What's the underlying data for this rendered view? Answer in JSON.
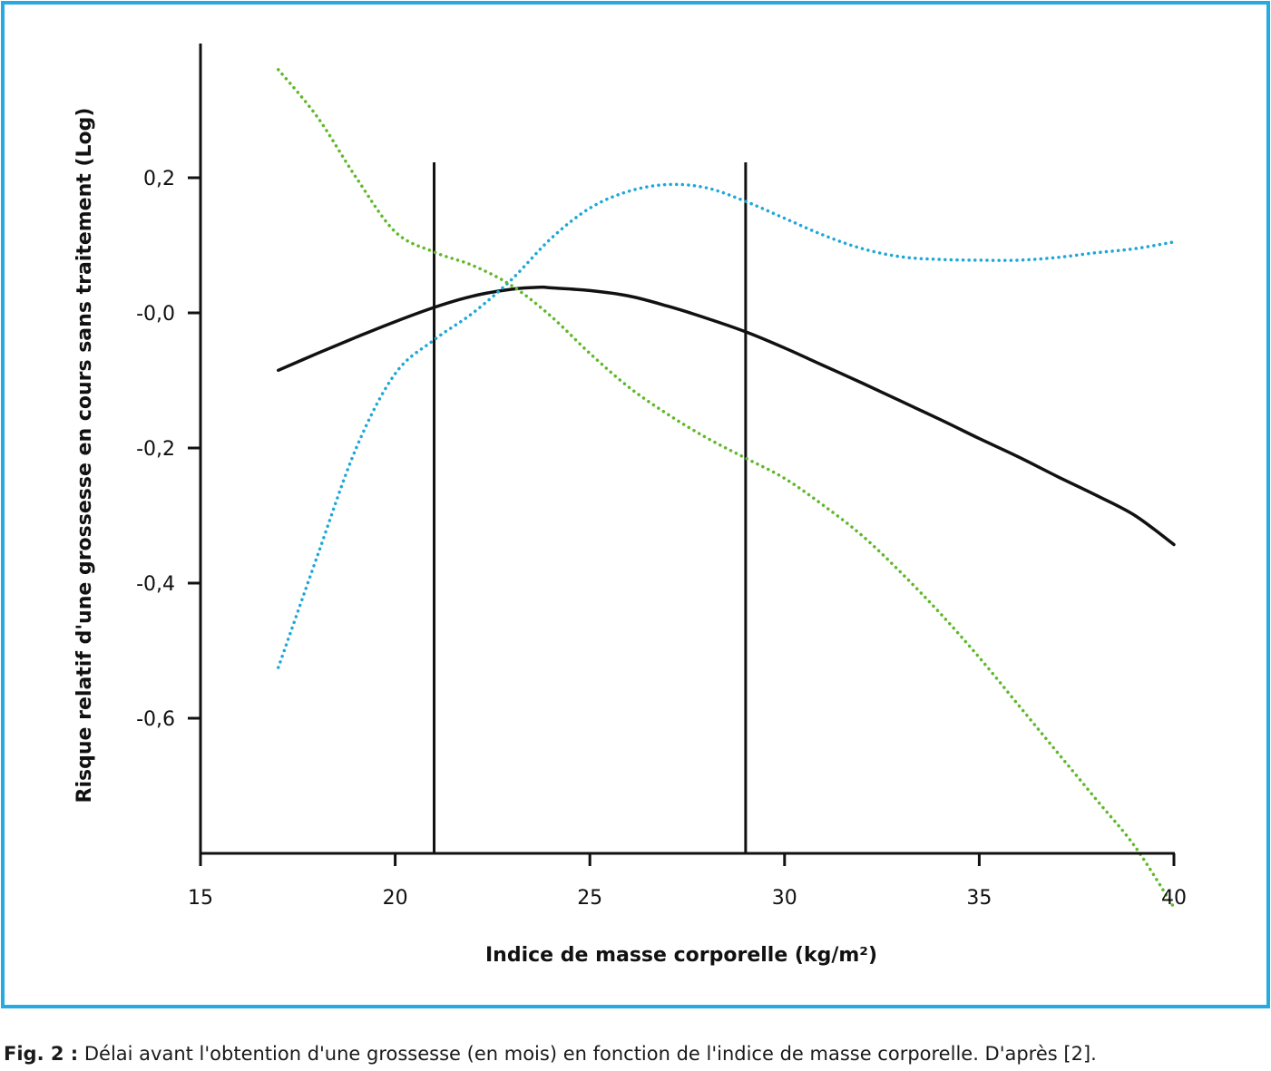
{
  "colors": {
    "frame": "#27a9e1",
    "axis": "#111111",
    "series_black": "#111111",
    "series_blue": "#1ea7d8",
    "series_green": "#5fb82a"
  },
  "caption": {
    "label": "Fig. 2 :",
    "text": " Délai avant l'obtention d'une grossesse (en mois) en fonction de l'indice de masse corporelle. D'après [2]."
  },
  "chart_data": {
    "type": "line",
    "title": "",
    "xlabel": "Indice de masse corporelle (kg/m²)",
    "ylabel": "Risque relatif d'une grossesse en cours sans traitement (Log)",
    "xlim": [
      15,
      40
    ],
    "ylim": [
      -0.8,
      0.4
    ],
    "x_ticks": [
      15,
      20,
      25,
      30,
      35,
      40
    ],
    "x_tick_labels": [
      "15",
      "20",
      "25",
      "30",
      "35",
      "40"
    ],
    "y_ticks": [
      0.2,
      0.0,
      -0.2,
      -0.4,
      -0.6
    ],
    "y_tick_labels": [
      "0,2",
      "-0,0",
      "-0,2",
      "-0,4",
      "-0,6"
    ],
    "reference_lines_x": [
      21,
      29
    ],
    "grid": false,
    "legend": "none",
    "series": [
      {
        "style": "solid",
        "color": "#111111",
        "x": [
          17,
          18,
          19,
          20,
          21,
          22,
          23,
          23.7,
          24,
          25,
          26,
          27,
          28,
          29,
          30,
          31,
          32,
          33,
          34,
          35,
          36,
          37,
          38,
          39,
          40
        ],
        "y": [
          -0.085,
          -0.06,
          -0.036,
          -0.013,
          0.008,
          0.025,
          0.035,
          0.038,
          0.037,
          0.033,
          0.025,
          0.01,
          -0.008,
          -0.028,
          -0.052,
          -0.078,
          -0.104,
          -0.131,
          -0.158,
          -0.186,
          -0.213,
          -0.242,
          -0.27,
          -0.3,
          -0.343
        ]
      },
      {
        "style": "dotted",
        "color": "#1ea7d8",
        "x": [
          17,
          18,
          19,
          20,
          21,
          22,
          23,
          24,
          25,
          26,
          27,
          28,
          29,
          30,
          31,
          32,
          33,
          34,
          35,
          36,
          37,
          38,
          39,
          40
        ],
        "y": [
          -0.525,
          -0.36,
          -0.2,
          -0.09,
          -0.04,
          0.0,
          0.05,
          0.11,
          0.155,
          0.18,
          0.19,
          0.185,
          0.165,
          0.14,
          0.115,
          0.095,
          0.083,
          0.079,
          0.078,
          0.078,
          0.082,
          0.089,
          0.095,
          0.105
        ]
      },
      {
        "style": "dotted",
        "color": "#5fb82a",
        "x": [
          17,
          18,
          19,
          20,
          21,
          22,
          23,
          24,
          25,
          26,
          27,
          28,
          29,
          30,
          31,
          32,
          33,
          34,
          35,
          36,
          37,
          38,
          39,
          40
        ],
        "y": [
          0.36,
          0.29,
          0.2,
          0.12,
          0.09,
          0.07,
          0.04,
          -0.005,
          -0.06,
          -0.11,
          -0.15,
          -0.185,
          -0.215,
          -0.245,
          -0.285,
          -0.33,
          -0.385,
          -0.445,
          -0.51,
          -0.58,
          -0.65,
          -0.72,
          -0.79,
          -0.88
        ]
      }
    ]
  }
}
